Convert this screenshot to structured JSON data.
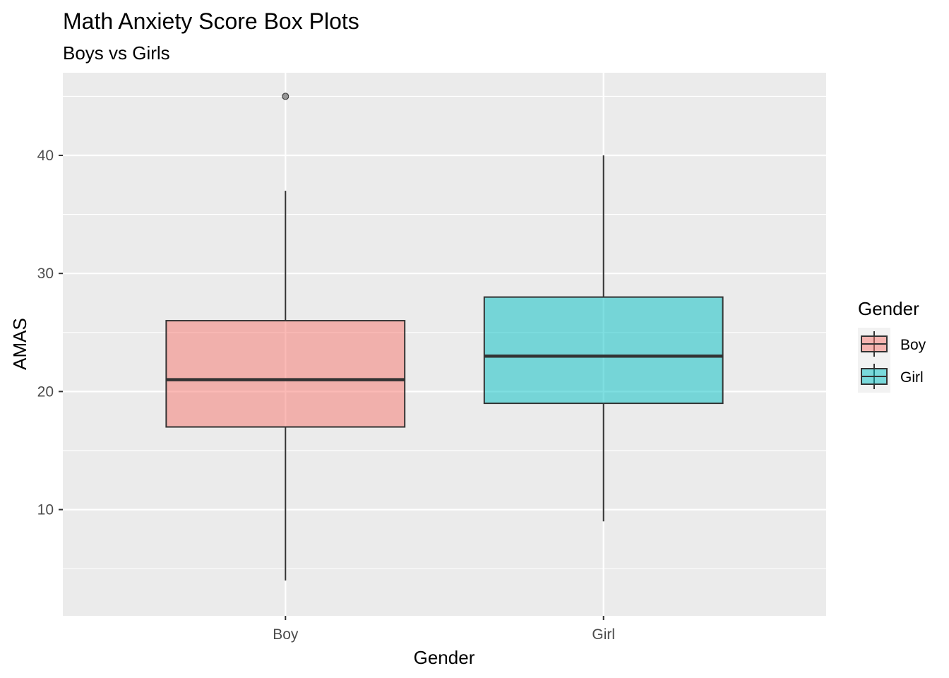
{
  "chart_data": {
    "type": "box",
    "title": "Math Anxiety Score Box Plots",
    "subtitle": "Boys vs Girls",
    "xlabel": "Gender",
    "ylabel": "AMAS",
    "ylim": [
      1,
      47
    ],
    "yticks": [
      10,
      20,
      30,
      40
    ],
    "grid": true,
    "legend": {
      "title": "Gender",
      "position": "right"
    },
    "categories": [
      "Boy",
      "Girl"
    ],
    "series": [
      {
        "name": "Boy",
        "color": "#F8766D",
        "whisker_low": 4,
        "q1": 17,
        "median": 21,
        "q3": 26,
        "whisker_high": 37,
        "outliers": [
          45
        ]
      },
      {
        "name": "Girl",
        "color": "#00BFC4",
        "whisker_low": 9,
        "q1": 19,
        "median": 23,
        "q3": 28,
        "whisker_high": 40,
        "outliers": []
      }
    ]
  }
}
